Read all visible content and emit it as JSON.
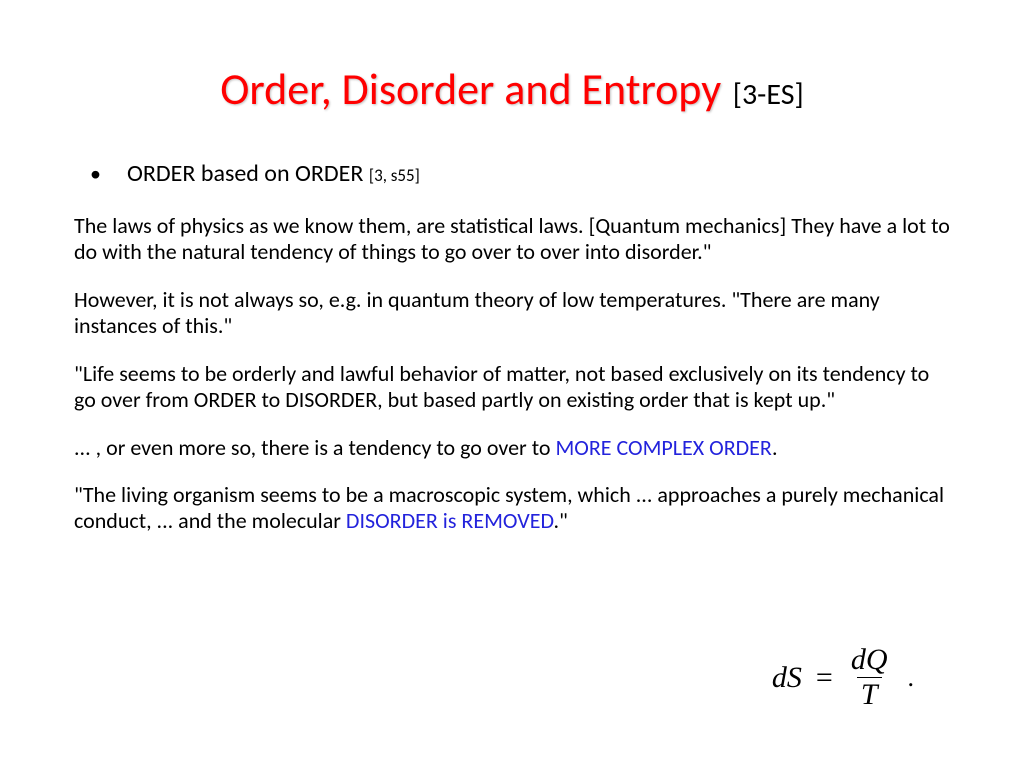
{
  "title": {
    "main": "Order, Disorder and Entropy",
    "tag": "[3-ES]"
  },
  "bullet": {
    "text": "ORDER based on ORDER ",
    "ref": "[3, s55]"
  },
  "paragraphs": {
    "p1": "The laws of physics as we know them, are statistical laws. [Quantum mechanics] They have a lot to do with the natural tendency of things to go over to over into disorder.\"",
    "p2": "However, it is not always so, e.g. in quantum theory of low temperatures. \"There are many instances of this.\"",
    "p3": "\"Life seems to be orderly and lawful behavior of matter, not based exclusively on its tendency to go over from ORDER to DISORDER, but based partly on existing order that is kept up.\"",
    "p4a": "... , or even more so, there is a tendency to go over to ",
    "p4b": "MORE COMPLEX ORDER",
    "p4c": ".",
    "p5a": "\"The living organism seems to be a macroscopic system, which ... approaches a purely mechanical conduct, ... and the molecular ",
    "p5b": "DISORDER is REMOVED",
    "p5c": ".\""
  },
  "formula": {
    "lhs": "dS",
    "eq": "=",
    "num": "dQ",
    "den": "T",
    "dot": "."
  },
  "colors": {
    "title_main": "#ff0000",
    "title_tag": "#000000",
    "body_text": "#000000",
    "highlight": "#2323dc",
    "background": "#ffffff"
  },
  "typography": {
    "title_main_fontsize": 44,
    "title_tag_fontsize": 30,
    "bullet_fontsize": 24,
    "bullet_ref_fontsize": 17,
    "para_fontsize": 22,
    "formula_fontsize": 30,
    "font_family": "Calibri",
    "formula_font_family": "Cambria Math"
  }
}
